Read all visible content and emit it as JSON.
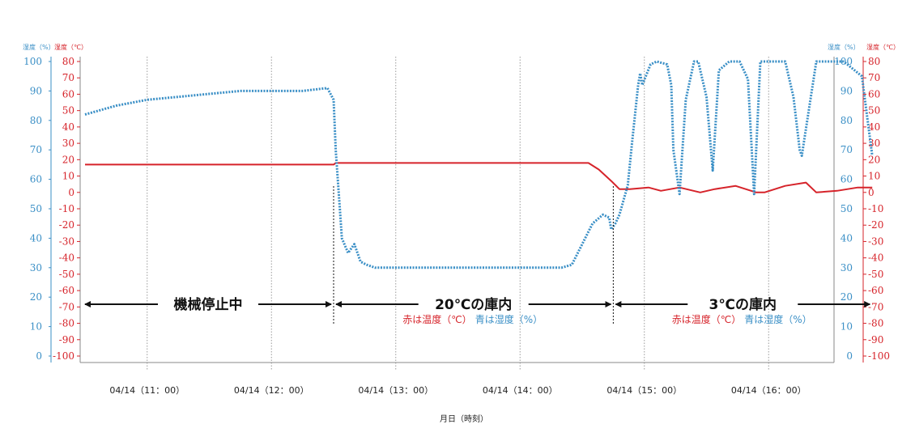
{
  "chart_data": {
    "type": "line",
    "title": "",
    "xlabel": "月日（時刻）",
    "left_axis_titles": {
      "humidity": "湿度（%）",
      "temperature": "湿度（℃）"
    },
    "right_axis_titles": {
      "humidity": "湿度（%）",
      "temperature": "湿度（℃）"
    },
    "humidity_axis": {
      "ylim": [
        0,
        100
      ],
      "ticks": [
        "100",
        "90",
        "80",
        "70",
        "60",
        "50",
        "40",
        "30",
        "20",
        "10",
        "0"
      ]
    },
    "temperature_axis": {
      "ylim": [
        -100,
        80
      ],
      "ticks": [
        "80",
        "70",
        "60",
        "50",
        "40",
        "30",
        "20",
        "10",
        "0",
        "-10",
        "-20",
        "-30",
        "-40",
        "-50",
        "-60",
        "-70",
        "-80",
        "-90",
        "-100"
      ]
    },
    "x_ticks": [
      "04/14（11：00）",
      "04/14（12：00）",
      "04/14（13：00）",
      "04/14（14：00）",
      "04/14（15：00）",
      "04/14（16：00）"
    ],
    "grid": "vertical dotted",
    "phases": [
      {
        "label": "機械停止中",
        "start": "10:30",
        "end": "12:30"
      },
      {
        "label": "20℃の庫内",
        "start": "12:30",
        "end": "14:45"
      },
      {
        "label": "3℃の庫内",
        "start": "14:45",
        "end": "16:50"
      }
    ],
    "legend": [
      {
        "text": "赤は温度（℃）",
        "color": "#d6232a"
      },
      {
        "text": "青は湿度（%）",
        "color": "#3a8fc6"
      }
    ],
    "colors": {
      "temperature": "#d6232a",
      "humidity": "#3a8fc6"
    },
    "series": [
      {
        "axis": "temperature",
        "style": "solid",
        "x": [
          "10:30",
          "12:30",
          "12:31",
          "14:30",
          "14:33",
          "14:38",
          "14:44",
          "14:48",
          "14:53",
          "15:02",
          "15:08",
          "15:17",
          "15:27",
          "15:34",
          "15:44",
          "15:54",
          "15:58",
          "16:08",
          "16:18",
          "16:23",
          "16:33",
          "16:43",
          "16:48",
          "16:50"
        ],
        "y": [
          17,
          17,
          18,
          18,
          18,
          14,
          7,
          2,
          2,
          3,
          1,
          3,
          0,
          2,
          4,
          0,
          0,
          4,
          6,
          0,
          1,
          3,
          3,
          3
        ]
      },
      {
        "axis": "humidity",
        "style": "dotted",
        "x": [
          "10:30",
          "10:45",
          "11:00",
          "11:15",
          "11:30",
          "11:45",
          "12:00",
          "12:15",
          "12:27",
          "12:30",
          "12:31",
          "12:33",
          "12:34",
          "12:37",
          "12:40",
          "12:43",
          "12:46",
          "12:50",
          "13:30",
          "14:00",
          "14:20",
          "14:25",
          "14:30",
          "14:35",
          "14:40",
          "14:43",
          "14:44",
          "14:46",
          "14:48",
          "14:52",
          "14:54",
          "14:57",
          "14:58",
          "14:59",
          "15:03",
          "15:06",
          "15:11",
          "15:13",
          "15:14",
          "15:17",
          "15:20",
          "15:24",
          "15:26",
          "15:30",
          "15:33",
          "15:36",
          "15:41",
          "15:46",
          "15:50",
          "15:53",
          "15:56",
          "16:02",
          "16:08",
          "16:12",
          "16:15",
          "16:16",
          "16:23",
          "16:28",
          "16:34",
          "16:36",
          "16:38",
          "16:45",
          "16:50"
        ],
        "y": [
          82,
          85,
          87,
          88,
          89,
          90,
          90,
          90,
          91,
          87,
          70,
          50,
          40,
          35,
          38,
          32,
          31,
          30,
          30,
          30,
          30,
          31,
          38,
          45,
          48,
          47,
          43,
          45,
          48,
          58,
          72,
          92,
          96,
          92,
          99,
          100,
          99,
          92,
          70,
          55,
          87,
          100,
          100,
          88,
          63,
          97,
          100,
          100,
          94,
          55,
          100,
          100,
          100,
          88,
          70,
          68,
          100,
          100,
          100,
          100,
          99,
          95,
          68
        ]
      }
    ],
    "annotations": [
      "機械停止中",
      "20℃の庫内",
      "3℃の庫内"
    ]
  }
}
